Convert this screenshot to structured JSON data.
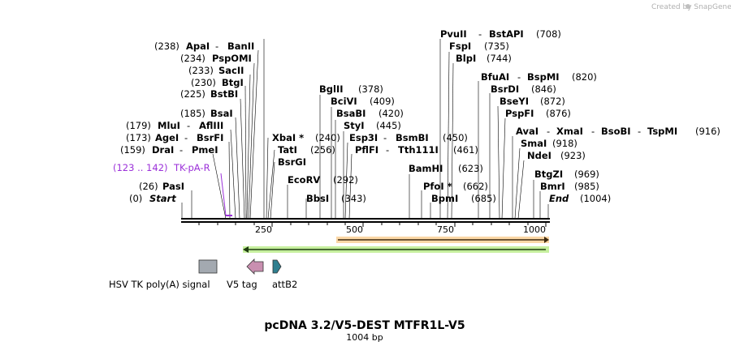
{
  "credit": "Created by SnapGene",
  "title": "pcDNA 3.2/V5-DEST MTFR1L-V5",
  "subtitle": "1004 bp",
  "ticks": [
    "250",
    "500",
    "750",
    "1000"
  ],
  "enzymes": {
    "start": {
      "pos": "(0)",
      "name": "Start"
    },
    "pasi": {
      "pos": "(26)",
      "name": "PasI"
    },
    "drai_pmei": {
      "pos": "(159)",
      "name": "DraI",
      "name2": "PmeI"
    },
    "agei_bsrfi": {
      "pos": "(173)",
      "name": "AgeI",
      "name2": "BsrFI"
    },
    "mlui_afliii": {
      "pos": "(179)",
      "name": "MluI",
      "name2": "AflIII"
    },
    "bsai": {
      "pos": "(185)",
      "name": "BsaI"
    },
    "bstbi": {
      "pos": "(225)",
      "name": "BstBI"
    },
    "btgi": {
      "pos": "(230)",
      "name": "BtgI"
    },
    "sacii": {
      "pos": "(233)",
      "name": "SacII"
    },
    "pspomi": {
      "pos": "(234)",
      "name": "PspOMI"
    },
    "apai_banii": {
      "pos": "(238)",
      "name": "ApaI",
      "name2": "BanII"
    },
    "xbai": {
      "name": "XbaI *",
      "pos": "(240)"
    },
    "tati": {
      "name": "TatI",
      "pos": "(256)"
    },
    "bsrgi": {
      "name": "BsrGI"
    },
    "ecorv": {
      "name": "EcoRV",
      "pos": "(292)"
    },
    "bbsi": {
      "name": "BbsI",
      "pos": "(343)"
    },
    "bglii": {
      "name": "BglII",
      "pos": "(378)"
    },
    "bcivi": {
      "name": "BciVI",
      "pos": "(409)"
    },
    "bsabi": {
      "name": "BsaBI",
      "pos": "(420)"
    },
    "styi": {
      "name": "StyI",
      "pos": "(445)"
    },
    "esp3i_bsmbi": {
      "name": "Esp3I",
      "name2": "BsmBI",
      "pos": "(450)"
    },
    "pflfi_tth111i": {
      "name": "PflFI",
      "name2": "Tth111I",
      "pos": "(461)"
    },
    "bamhi": {
      "name": "BamHI",
      "pos": "(623)"
    },
    "pfoi": {
      "name": "PfoI *",
      "pos": "(662)"
    },
    "bpmi": {
      "name": "BpmI",
      "pos": "(685)"
    },
    "pvuii_bstapi": {
      "name": "PvuII",
      "name2": "BstAPI",
      "pos": "(708)"
    },
    "fspi": {
      "name": "FspI",
      "pos": "(735)"
    },
    "blpi": {
      "name": "BlpI",
      "pos": "(744)"
    },
    "bfuai_bspmi": {
      "name": "BfuAI",
      "name2": "BspMI",
      "pos": "(820)"
    },
    "bsrdi": {
      "name": "BsrDI",
      "pos": "(846)"
    },
    "bseyi": {
      "name": "BseYI",
      "pos": "(872)"
    },
    "pspfi": {
      "name": "PspFI",
      "pos": "(876)"
    },
    "avai_group": {
      "name": "AvaI",
      "name2": "XmaI",
      "name3": "BsoBI",
      "name4": "TspMI",
      "pos": "(916)"
    },
    "smai": {
      "name": "SmaI",
      "pos": "(918)"
    },
    "ndei": {
      "name": "NdeI",
      "pos": "(923)"
    },
    "btgzi": {
      "name": "BtgZI",
      "pos": "(969)"
    },
    "bmri": {
      "name": "BmrI",
      "pos": "(985)"
    },
    "end": {
      "name": "End",
      "pos": "(1004)"
    }
  },
  "primer": {
    "range": "(123 .. 142)",
    "name": "TK-pA-R"
  },
  "features": {
    "hsv": "HSV TK poly(A) signal",
    "v5": "V5 tag",
    "attb2": "attB2"
  },
  "colors": {
    "primer": "#9b30d9",
    "orange_feature": "#f5a623",
    "green_feature": "#7ed321",
    "hsv_fill": "#a3a9b0",
    "v5_fill": "#c98fb0",
    "attb2_fill": "#2f7f8f"
  }
}
